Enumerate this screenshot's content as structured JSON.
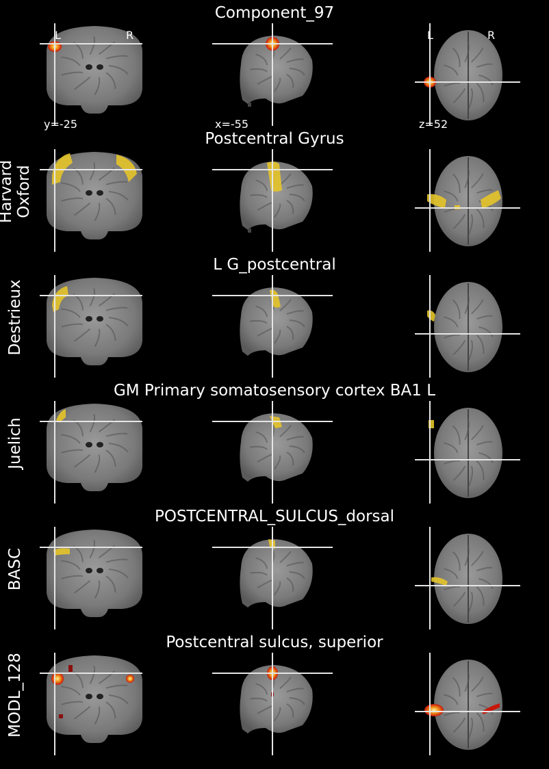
{
  "rows": [
    {
      "title": "Component_97",
      "label": "",
      "overlay": "heat"
    },
    {
      "title": "Postcentral Gyrus",
      "label": "Harvard\nOxford",
      "overlay": "yellow"
    },
    {
      "title": "L G_postcentral",
      "label": "Destrieux",
      "overlay": "yellow"
    },
    {
      "title": "GM Primary somatosensory cortex BA1 L",
      "label": "Juelich",
      "overlay": "yellow"
    },
    {
      "title": "POSTCENTRAL_SULCUS_dorsal",
      "label": "BASC",
      "overlay": "yellow"
    },
    {
      "title": "Postcentral sulcus, superior",
      "label": "MODL_128",
      "overlay": "heat"
    }
  ],
  "orientation": {
    "left": "L",
    "right": "R"
  },
  "coords": {
    "y": "y=-25",
    "x": "x=-55",
    "z": "z=52"
  },
  "colors": {
    "background": "#000000",
    "brain": "#8a8a8a",
    "crosshair": "#e6e6e6",
    "overlay_yellow": "#e6c42a",
    "overlay_heat_core": "#fff3a0",
    "overlay_heat_edge": "#c8160a"
  }
}
